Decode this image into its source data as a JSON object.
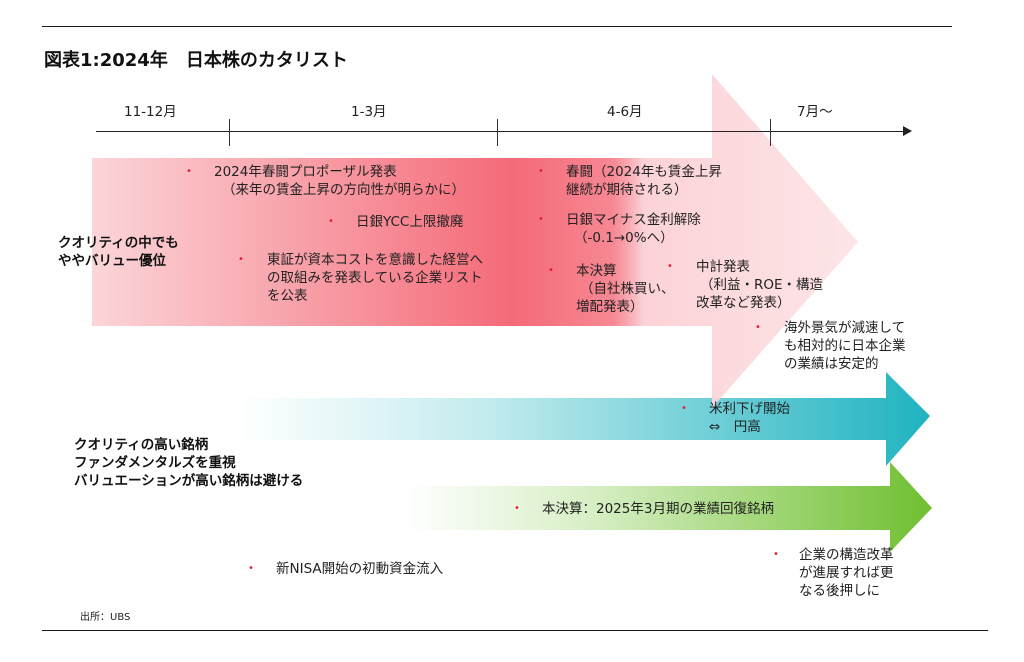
{
  "title": "図表1:2024年　日本株のカタリスト",
  "periods": [
    "11-12月",
    "1-3月",
    "4-6月",
    "7月～"
  ],
  "left_labels": {
    "quality_value": [
      "クオリティの中でも",
      "ややバリュー優位"
    ],
    "quality_high": [
      "クオリティの高い銘柄",
      "ファンダメンタルズを重視",
      "バリュエーションが高い銘柄は避ける"
    ]
  },
  "items": {
    "shunto_proposal": [
      "2024年春闘プロポーザル発表",
      "（来年の賃金上昇の方向性が明らかに）"
    ],
    "boj_ycc": [
      "日銀YCC上限撤廃"
    ],
    "tse_list": [
      "東証が資本コストを意識した経営へ",
      "の取組みを発表している企業リスト",
      "を公表"
    ],
    "shunto": [
      "春闘（2024年も賃金上昇",
      "継続が期待される）"
    ],
    "boj_negative": [
      "日銀マイナス金利解除",
      "（-0.1→0%へ）"
    ],
    "earnings": [
      "本決算",
      "（自社株買い、",
      "増配発表）"
    ],
    "midterm_plan": [
      "中計発表",
      "（利益・ROE・構造",
      "改革など発表）"
    ],
    "overseas": [
      "海外景気が減速して",
      "も相対的に日本企業",
      "の業績は安定的"
    ],
    "us_rate_cut": [
      "米利下げ開始",
      "⇔　円高"
    ],
    "earnings_recovery": [
      "本決算：2025年3月期の業績回復銘柄"
    ],
    "nisa": [
      "新NISA開始の初動資金流入"
    ],
    "structural_reform": [
      "企業の構造改革",
      "が進展すれば更",
      "なる後押しに"
    ]
  },
  "source": "出所：UBS",
  "colors": {
    "red_arrow": "#f24a5e",
    "teal_arrow": "#22b5c2",
    "green_arrow": "#77c43a",
    "bullet": "#e0203a"
  }
}
